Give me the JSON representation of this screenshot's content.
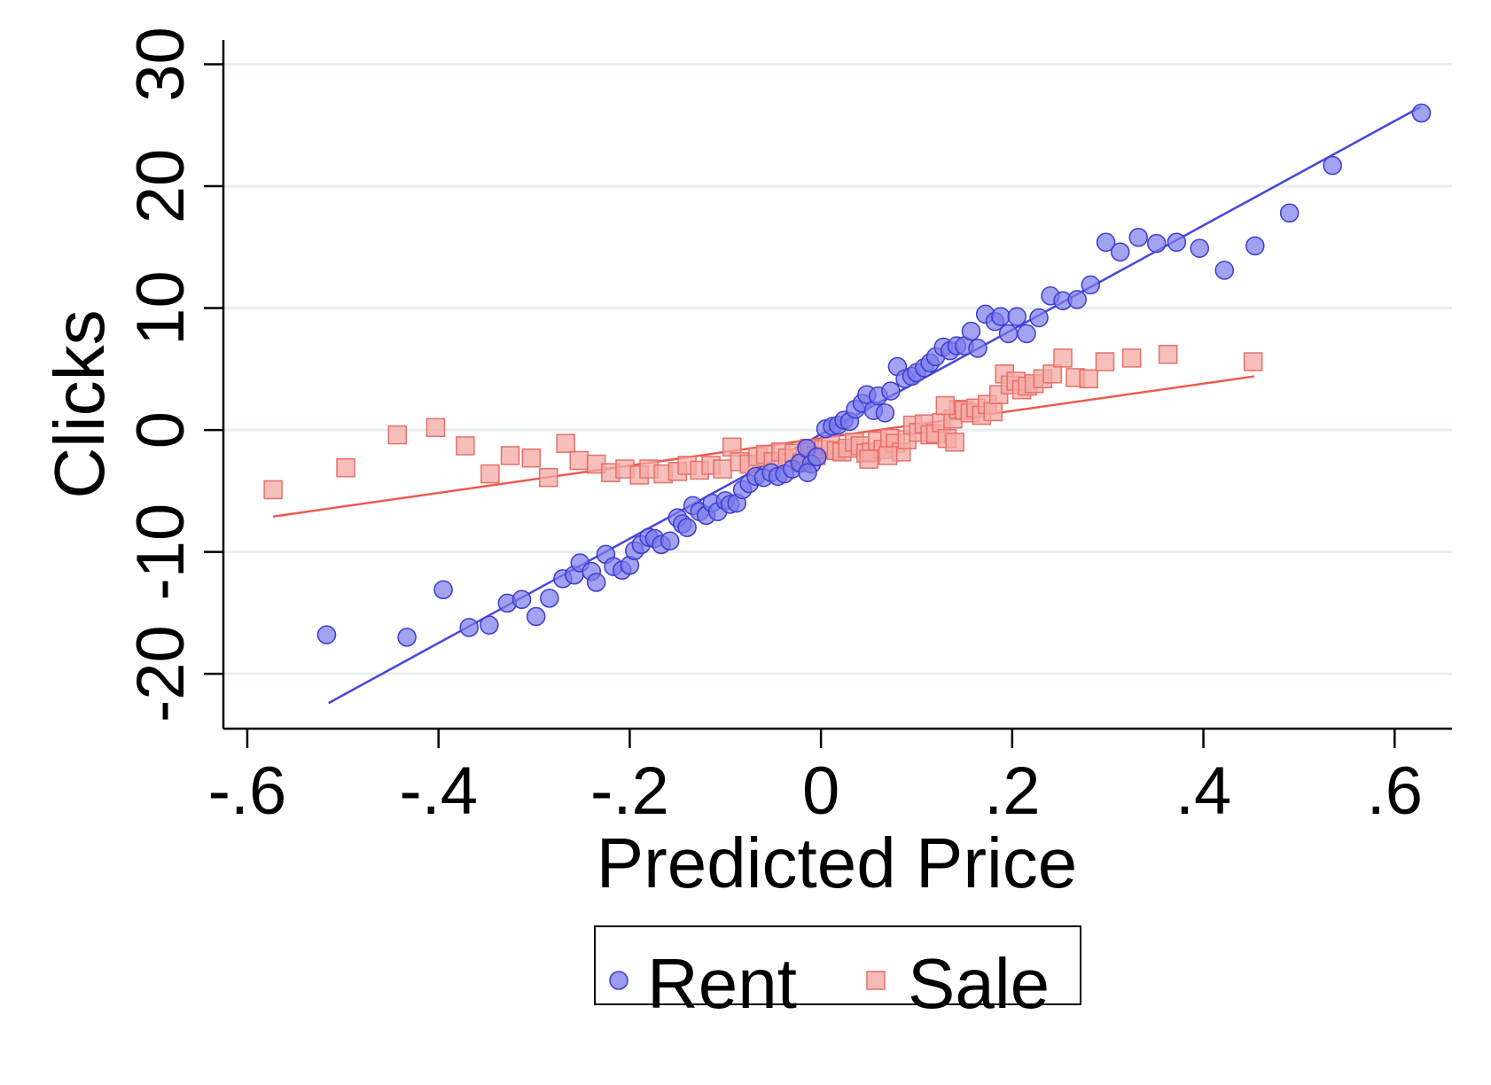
{
  "chart_data": {
    "type": "scatter",
    "xlabel": "Predicted Price",
    "ylabel": "Clicks",
    "xlim": [
      -0.625,
      0.66
    ],
    "ylim": [
      -24.5,
      32.0
    ],
    "x_ticks": [
      -0.6,
      -0.4,
      -0.2,
      0,
      0.2,
      0.4,
      0.6
    ],
    "x_tick_labels": [
      "-.6",
      "-.4",
      "-.2",
      "0",
      ".2",
      ".4",
      ".6"
    ],
    "y_ticks": [
      -20,
      -10,
      0,
      10,
      20,
      30
    ],
    "y_tick_labels": [
      "-20",
      "-10",
      "0",
      "10",
      "20",
      "30"
    ],
    "grid": "horizontal",
    "legend": {
      "placement": "bottom",
      "entries": [
        "Rent",
        "Sale"
      ]
    },
    "series": [
      {
        "name": "Rent",
        "marker": "circle",
        "color": "#7b7bea",
        "edge_color": "#3b3bd4",
        "fit_color": "#4646e0",
        "fit": {
          "x": [
            -0.515,
            0.627
          ],
          "y": [
            -22.4,
            26.5
          ]
        },
        "points": [
          [
            -0.517,
            -16.8
          ],
          [
            -0.433,
            -17.0
          ],
          [
            -0.395,
            -13.1
          ],
          [
            -0.368,
            -16.2
          ],
          [
            -0.347,
            -16.0
          ],
          [
            -0.328,
            -14.2
          ],
          [
            -0.313,
            -13.9
          ],
          [
            -0.298,
            -15.3
          ],
          [
            -0.284,
            -13.8
          ],
          [
            -0.27,
            -12.2
          ],
          [
            -0.258,
            -11.9
          ],
          [
            -0.252,
            -10.9
          ],
          [
            -0.24,
            -11.6
          ],
          [
            -0.235,
            -12.5
          ],
          [
            -0.225,
            -10.2
          ],
          [
            -0.217,
            -11.2
          ],
          [
            -0.208,
            -11.5
          ],
          [
            -0.2,
            -11.1
          ],
          [
            -0.195,
            -9.9
          ],
          [
            -0.188,
            -9.4
          ],
          [
            -0.18,
            -8.8
          ],
          [
            -0.174,
            -8.9
          ],
          [
            -0.167,
            -9.4
          ],
          [
            -0.158,
            -9.1
          ],
          [
            -0.15,
            -7.2
          ],
          [
            -0.145,
            -7.7
          ],
          [
            -0.14,
            -8.0
          ],
          [
            -0.134,
            -6.2
          ],
          [
            -0.127,
            -6.7
          ],
          [
            -0.12,
            -7.0
          ],
          [
            -0.114,
            -6.0
          ],
          [
            -0.108,
            -6.7
          ],
          [
            -0.1,
            -5.8
          ],
          [
            -0.095,
            -6.1
          ],
          [
            -0.088,
            -6.0
          ],
          [
            -0.082,
            -4.9
          ],
          [
            -0.075,
            -4.4
          ],
          [
            -0.068,
            -3.8
          ],
          [
            -0.06,
            -3.9
          ],
          [
            -0.052,
            -3.5
          ],
          [
            -0.045,
            -3.8
          ],
          [
            -0.038,
            -3.6
          ],
          [
            -0.03,
            -3.2
          ],
          [
            -0.022,
            -2.7
          ],
          [
            -0.015,
            -1.5
          ],
          [
            -0.01,
            -2.8
          ],
          [
            -0.004,
            -2.2
          ],
          [
            -0.014,
            -3.5
          ],
          [
            0.005,
            0.1
          ],
          [
            0.012,
            0.3
          ],
          [
            0.018,
            0.4
          ],
          [
            0.024,
            0.8
          ],
          [
            0.03,
            0.7
          ],
          [
            0.036,
            1.7
          ],
          [
            0.043,
            2.2
          ],
          [
            0.048,
            2.9
          ],
          [
            0.055,
            1.6
          ],
          [
            0.06,
            2.8
          ],
          [
            0.067,
            1.4
          ],
          [
            0.073,
            3.2
          ],
          [
            0.08,
            5.2
          ],
          [
            0.088,
            4.2
          ],
          [
            0.095,
            4.4
          ],
          [
            0.1,
            4.7
          ],
          [
            0.108,
            5.1
          ],
          [
            0.114,
            5.5
          ],
          [
            0.12,
            6.0
          ],
          [
            0.128,
            6.8
          ],
          [
            0.135,
            6.5
          ],
          [
            0.142,
            6.9
          ],
          [
            0.15,
            6.9
          ],
          [
            0.157,
            8.1
          ],
          [
            0.164,
            6.7
          ],
          [
            0.172,
            9.5
          ],
          [
            0.182,
            8.9
          ],
          [
            0.188,
            9.3
          ],
          [
            0.196,
            7.9
          ],
          [
            0.205,
            9.3
          ],
          [
            0.215,
            7.9
          ],
          [
            0.228,
            9.2
          ],
          [
            0.24,
            11.0
          ],
          [
            0.253,
            10.6
          ],
          [
            0.268,
            10.7
          ],
          [
            0.282,
            11.9
          ],
          [
            0.298,
            15.4
          ],
          [
            0.313,
            14.6
          ],
          [
            0.332,
            15.8
          ],
          [
            0.351,
            15.3
          ],
          [
            0.372,
            15.4
          ],
          [
            0.396,
            14.9
          ],
          [
            0.422,
            13.1
          ],
          [
            0.454,
            15.1
          ],
          [
            0.49,
            17.8
          ],
          [
            0.535,
            21.7
          ],
          [
            0.628,
            26.0
          ]
        ]
      },
      {
        "name": "Sale",
        "marker": "square",
        "color": "#f4aaa6",
        "edge_color": "#e57068",
        "fit_color": "#ec5a4e",
        "fit": {
          "x": [
            -0.573,
            0.453
          ],
          "y": [
            -7.1,
            4.4
          ]
        },
        "points": [
          [
            -0.573,
            -4.9
          ],
          [
            -0.497,
            -3.1
          ],
          [
            -0.443,
            -0.4
          ],
          [
            -0.403,
            0.2
          ],
          [
            -0.372,
            -1.3
          ],
          [
            -0.346,
            -3.6
          ],
          [
            -0.325,
            -2.1
          ],
          [
            -0.303,
            -2.3
          ],
          [
            -0.285,
            -3.9
          ],
          [
            -0.267,
            -1.1
          ],
          [
            -0.253,
            -2.5
          ],
          [
            -0.235,
            -2.8
          ],
          [
            -0.22,
            -3.5
          ],
          [
            -0.205,
            -3.2
          ],
          [
            -0.19,
            -3.7
          ],
          [
            -0.18,
            -3.2
          ],
          [
            -0.165,
            -3.6
          ],
          [
            -0.15,
            -3.4
          ],
          [
            -0.14,
            -2.9
          ],
          [
            -0.127,
            -3.3
          ],
          [
            -0.115,
            -2.9
          ],
          [
            -0.103,
            -3.2
          ],
          [
            -0.093,
            -1.4
          ],
          [
            -0.085,
            -2.6
          ],
          [
            -0.075,
            -2.8
          ],
          [
            -0.066,
            -2.2
          ],
          [
            -0.058,
            -2.0
          ],
          [
            -0.05,
            -2.6
          ],
          [
            -0.042,
            -1.8
          ],
          [
            -0.035,
            -2.3
          ],
          [
            -0.028,
            -1.9
          ],
          [
            -0.02,
            -2.7
          ],
          [
            -0.012,
            -1.5
          ],
          [
            -0.005,
            -2.1
          ],
          [
            0.003,
            -1.6
          ],
          [
            0.01,
            -1.2
          ],
          [
            0.016,
            -1.7
          ],
          [
            0.022,
            -1.8
          ],
          [
            0.028,
            -1.5
          ],
          [
            0.035,
            -1.0
          ],
          [
            0.041,
            -1.3
          ],
          [
            0.047,
            -1.9
          ],
          [
            0.053,
            -1.8
          ],
          [
            0.059,
            -0.9
          ],
          [
            0.065,
            -1.6
          ],
          [
            0.072,
            -0.7
          ],
          [
            0.078,
            -1.1
          ],
          [
            0.084,
            -1.8
          ],
          [
            0.09,
            -0.8
          ],
          [
            0.096,
            0.4
          ],
          [
            0.102,
            -0.2
          ],
          [
            0.108,
            0.5
          ],
          [
            0.114,
            -0.4
          ],
          [
            0.12,
            -0.3
          ],
          [
            0.126,
            0.6
          ],
          [
            0.132,
            -0.7
          ],
          [
            0.138,
            0.9
          ],
          [
            0.144,
            1.7
          ],
          [
            0.15,
            1.6
          ],
          [
            0.156,
            1.4
          ],
          [
            0.162,
            1.8
          ],
          [
            0.168,
            1.2
          ],
          [
            0.174,
            2.1
          ],
          [
            0.18,
            1.5
          ],
          [
            0.186,
            2.9
          ],
          [
            0.192,
            4.6
          ],
          [
            0.198,
            3.7
          ],
          [
            0.204,
            4.0
          ],
          [
            0.21,
            3.3
          ],
          [
            0.216,
            3.6
          ],
          [
            0.223,
            3.8
          ],
          [
            0.232,
            4.2
          ],
          [
            0.242,
            4.6
          ],
          [
            0.253,
            5.9
          ],
          [
            0.266,
            4.3
          ],
          [
            0.28,
            4.2
          ],
          [
            0.297,
            5.6
          ],
          [
            0.325,
            5.9
          ],
          [
            0.363,
            6.2
          ],
          [
            0.452,
            5.6
          ],
          [
            0.13,
            2.0
          ],
          [
            0.14,
            -1.0
          ],
          [
            0.07,
            -2.1
          ],
          [
            0.05,
            -2.4
          ]
        ]
      }
    ]
  }
}
